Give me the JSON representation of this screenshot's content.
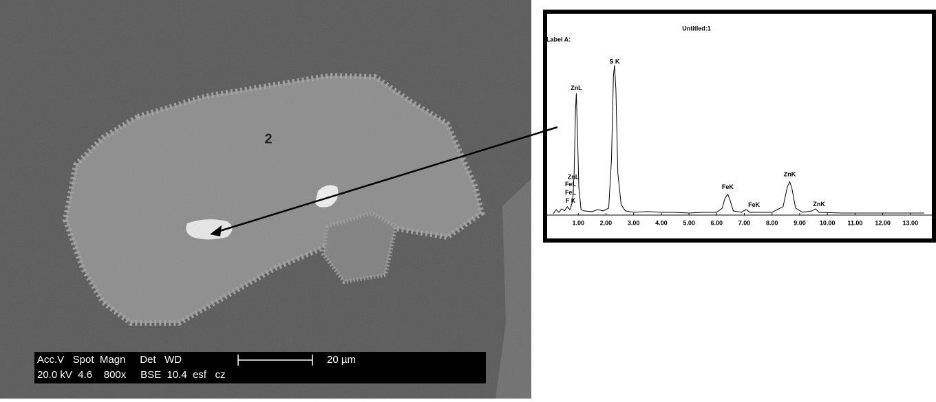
{
  "sem_image": {
    "grain_label": "2",
    "databar": {
      "header": "Acc.V   Spot  Magn     Det   WD",
      "values": "20.0 kV  4.6    800x     BSE  10.4  esf   cz",
      "scale": "20 µm"
    }
  },
  "chart_data": {
    "type": "line",
    "title": "Untitled:1",
    "subtitle": "Label A:",
    "color": "#000000",
    "x": [
      0.1,
      0.2,
      0.3,
      0.4,
      0.5,
      0.6,
      0.7,
      0.8,
      0.85,
      0.9,
      0.93,
      0.97,
      1.02,
      1.1,
      1.2,
      1.5,
      1.7,
      1.9,
      2.1,
      2.2,
      2.27,
      2.31,
      2.36,
      2.43,
      2.55,
      2.7,
      3.0,
      3.5,
      4.0,
      4.5,
      5.0,
      5.5,
      6.0,
      6.2,
      6.3,
      6.4,
      6.48,
      6.6,
      6.9,
      7.06,
      7.2,
      7.6,
      8.0,
      8.4,
      8.55,
      8.64,
      8.72,
      8.85,
      9.1,
      9.45,
      9.57,
      9.7,
      10.5,
      11.5,
      12.5,
      13.5
    ],
    "values": [
      2,
      8,
      4,
      9,
      6,
      12,
      8,
      20,
      60,
      150,
      175,
      120,
      40,
      8,
      6,
      5,
      8,
      6,
      10,
      80,
      200,
      215,
      180,
      60,
      15,
      6,
      4,
      5,
      4,
      4,
      3,
      4,
      4,
      10,
      24,
      30,
      22,
      6,
      4,
      8,
      4,
      4,
      4,
      12,
      40,
      48,
      38,
      10,
      4,
      6,
      9,
      4,
      3,
      3,
      3,
      3
    ],
    "xlim": [
      0,
      13.8
    ],
    "ylim": [
      0,
      230
    ],
    "xticks": [
      {
        "value": 1,
        "label": "1.00"
      },
      {
        "value": 2,
        "label": "2.00"
      },
      {
        "value": 3,
        "label": "3.00"
      },
      {
        "value": 4,
        "label": "4.00"
      },
      {
        "value": 5,
        "label": "5.00"
      },
      {
        "value": 6,
        "label": "6.00"
      },
      {
        "value": 7,
        "label": "7.00"
      },
      {
        "value": 8,
        "label": "8.00"
      },
      {
        "value": 9,
        "label": "9.00"
      },
      {
        "value": 10,
        "label": "10.00"
      },
      {
        "value": 11,
        "label": "11.00"
      },
      {
        "value": 12,
        "label": "12.00"
      },
      {
        "value": 13,
        "label": "13.00"
      }
    ],
    "annotations": [
      {
        "text": "ZnL",
        "x": 0.93,
        "y": 182
      },
      {
        "text": "S K",
        "x": 2.31,
        "y": 220
      },
      {
        "text": "ZnL",
        "x": 0.82,
        "y": 54
      },
      {
        "text": "FeL",
        "x": 0.72,
        "y": 44
      },
      {
        "text": "FeL",
        "x": 0.72,
        "y": 32
      },
      {
        "text": "F K",
        "x": 0.72,
        "y": 20
      },
      {
        "text": "FeK",
        "x": 6.4,
        "y": 40
      },
      {
        "text": "FeK",
        "x": 7.35,
        "y": 14
      },
      {
        "text": "ZnK",
        "x": 8.64,
        "y": 58
      },
      {
        "text": "ZnK",
        "x": 9.7,
        "y": 15
      }
    ]
  }
}
